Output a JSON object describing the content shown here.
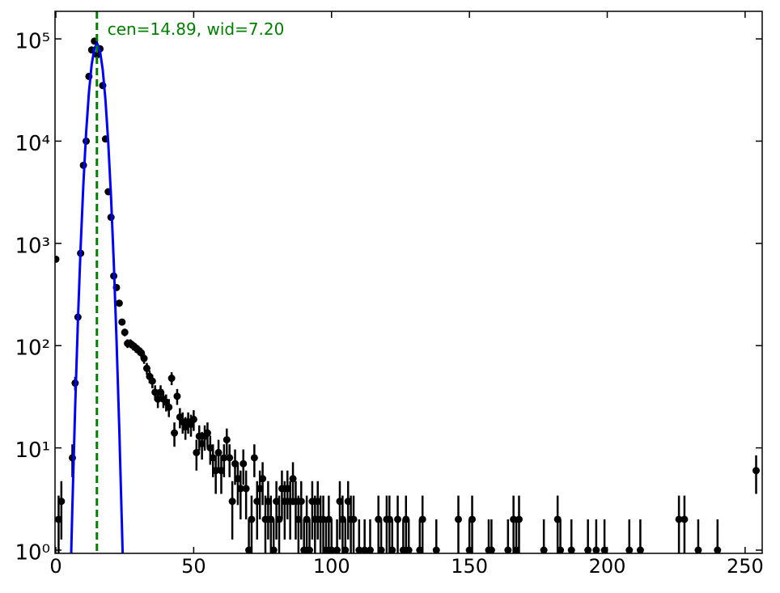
{
  "chart_data": {
    "type": "scatter",
    "log_y": true,
    "xlim": [
      -0.3,
      256.2
    ],
    "ylim": [
      0.93,
      186000
    ],
    "xticks": [
      0,
      50,
      100,
      150,
      200,
      250
    ],
    "yticks": [
      {
        "value": 1,
        "label": "10⁰"
      },
      {
        "value": 10,
        "label": "10¹"
      },
      {
        "value": 100,
        "label": "10²"
      },
      {
        "value": 1000,
        "label": "10³"
      },
      {
        "value": 10000,
        "label": "10⁴"
      },
      {
        "value": 100000,
        "label": "10⁵"
      }
    ],
    "vline": {
      "x": 14.89,
      "color": "#008000"
    },
    "annotation": "cen=14.89, wid=7.20",
    "series": [
      {
        "type": "errorbar",
        "color": "#000000",
        "x": [
          0,
          1,
          2,
          6,
          7,
          8,
          9,
          10,
          11,
          12,
          13,
          14,
          15,
          16,
          17,
          18,
          19,
          20,
          21,
          22,
          23,
          24,
          25,
          26,
          27,
          28,
          29,
          30,
          31,
          32,
          33,
          34,
          35,
          36,
          37,
          38,
          39,
          40,
          41,
          42,
          43,
          44,
          45,
          46,
          47,
          48,
          49,
          50,
          51,
          52,
          53,
          54,
          55,
          56,
          57,
          58,
          59,
          60,
          61,
          62,
          63,
          64,
          65,
          66,
          67,
          68,
          69,
          70,
          71,
          72,
          73,
          74,
          75,
          76,
          77,
          78,
          79,
          80,
          81,
          82,
          83,
          84,
          85,
          86,
          87,
          88,
          89,
          90,
          91,
          92,
          93,
          94,
          95,
          96,
          97,
          98,
          99,
          100,
          102,
          103,
          104,
          105,
          106,
          107,
          108,
          110,
          112,
          114,
          117,
          118,
          120,
          121,
          122,
          124,
          126,
          127,
          128,
          132,
          133,
          138,
          146,
          150,
          151,
          157,
          158,
          164,
          166,
          167,
          168,
          177,
          182,
          183,
          187,
          193,
          196,
          199,
          208,
          212,
          226,
          228,
          233,
          240,
          254
        ],
        "values": [
          700,
          2,
          3,
          8,
          43,
          190,
          800,
          5800,
          10000,
          43000,
          78000,
          95000,
          70000,
          80000,
          35000,
          10500,
          3200,
          1800,
          480,
          370,
          260,
          170,
          135,
          105,
          105,
          100,
          95,
          90,
          85,
          75,
          60,
          50,
          45,
          35,
          30,
          35,
          30,
          28,
          25,
          48,
          14,
          32,
          20,
          18,
          16,
          18,
          17,
          19,
          9,
          13,
          11,
          13,
          14,
          10,
          8,
          6,
          9,
          6,
          8,
          12,
          8,
          3,
          7,
          5,
          4,
          7,
          4,
          1,
          2,
          8,
          3,
          4,
          5,
          2,
          3,
          2,
          1,
          3,
          2,
          4,
          3,
          4,
          3,
          5,
          3,
          2,
          3,
          1,
          2,
          1,
          3,
          2,
          3,
          2,
          2,
          1,
          2,
          1,
          1,
          3,
          2,
          1,
          3,
          2,
          2,
          1,
          1,
          1,
          2,
          1,
          2,
          2,
          1,
          2,
          1,
          2,
          1,
          1,
          2,
          1,
          2,
          1,
          2,
          1,
          1,
          1,
          2,
          1,
          2,
          1,
          2,
          1,
          1,
          1,
          1,
          1,
          1,
          1,
          2,
          2,
          1,
          1,
          6
        ],
        "errors": [
          26.46,
          1.41,
          1.73,
          2.83,
          6.56,
          13.78,
          28.28,
          76.16,
          100,
          207.36,
          279.28,
          308.22,
          264.58,
          282.84,
          187.08,
          102.47,
          56.57,
          42.43,
          21.91,
          19.24,
          16.12,
          13.04,
          11.62,
          10.25,
          10.25,
          10,
          9.75,
          9.49,
          9.22,
          8.66,
          7.75,
          7.07,
          6.71,
          5.92,
          5.48,
          5.92,
          5.48,
          5.29,
          5,
          6.93,
          3.74,
          5.66,
          4.47,
          4.24,
          4,
          4.24,
          4.12,
          4.36,
          3,
          3.61,
          3.32,
          3.61,
          3.74,
          3.16,
          2.83,
          2.45,
          3,
          2.45,
          2.83,
          3.46,
          2.83,
          1.73,
          2.65,
          2.24,
          2,
          2.65,
          2,
          1,
          1.41,
          2.83,
          1.73,
          2,
          2.24,
          1.41,
          1.73,
          1.41,
          1,
          1.73,
          1.41,
          2,
          1.73,
          2,
          1.73,
          2.24,
          1.73,
          1.41,
          1.73,
          1,
          1.41,
          1,
          1.73,
          1.41,
          1.73,
          1.41,
          1.41,
          1,
          1.41,
          1,
          1,
          1.73,
          1.41,
          1,
          1.73,
          1.41,
          1.41,
          1,
          1,
          1,
          1.41,
          1,
          1.41,
          1.41,
          1,
          1.41,
          1,
          1.41,
          1,
          1,
          1.41,
          1,
          1.41,
          1,
          1.41,
          1,
          1,
          1,
          1.41,
          1,
          1.41,
          1,
          1.41,
          1,
          1,
          1,
          1,
          1,
          1,
          1,
          1.41,
          1.41,
          1,
          1,
          2.45
        ]
      },
      {
        "type": "line",
        "color": "#0000ff",
        "x": [
          5,
          6,
          7,
          8,
          9,
          10,
          11,
          12,
          13,
          14,
          15,
          16,
          17,
          18,
          19,
          20,
          21,
          22,
          23,
          24,
          24.5
        ],
        "values": [
          0.23,
          2.7,
          24.7,
          174,
          934,
          3870,
          12300,
          30000,
          56300,
          81100,
          89900,
          76600,
          50100,
          25200,
          9730,
          2900,
          663,
          116,
          15.6,
          1.6,
          0.48
        ]
      }
    ]
  }
}
